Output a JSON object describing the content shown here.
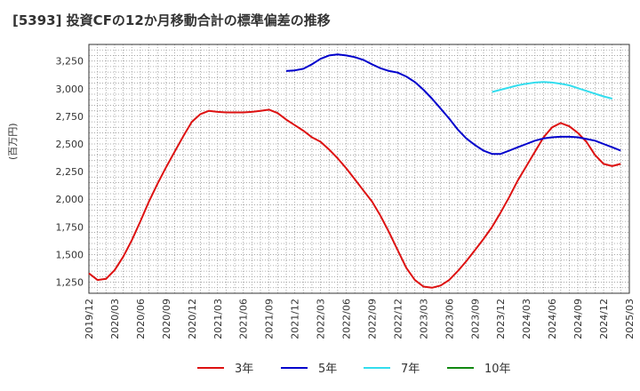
{
  "chart_data": {
    "type": "line",
    "title": "[5393]  投資CFの12か月移動合計の標準偏差の推移",
    "xlabel": "",
    "ylabel": "(百万円)",
    "ylim": [
      1150,
      3400
    ],
    "yticks": [
      1250,
      1500,
      1750,
      2000,
      2250,
      2500,
      2750,
      3000,
      3250
    ],
    "ytick_labels": [
      "1,250",
      "1,500",
      "1,750",
      "2,000",
      "2,250",
      "2,500",
      "2,750",
      "3,000",
      "3,250"
    ],
    "x_ticks": [
      "2019/12",
      "2020/03",
      "2020/06",
      "2020/09",
      "2020/12",
      "2021/03",
      "2021/06",
      "2021/09",
      "2021/12",
      "2022/03",
      "2022/06",
      "2022/09",
      "2022/12",
      "2023/03",
      "2023/06",
      "2023/09",
      "2023/12",
      "2024/03",
      "2024/06",
      "2024/09",
      "2024/12",
      "2025/03"
    ],
    "grid": true,
    "legend": "bottom",
    "series": [
      {
        "name": "3年",
        "color": "#dd1111",
        "start": "2019/12",
        "values": [
          1330,
          1270,
          1280,
          1360,
          1480,
          1630,
          1800,
          1980,
          2140,
          2290,
          2430,
          2570,
          2700,
          2770,
          2800,
          2790,
          2785,
          2785,
          2785,
          2790,
          2800,
          2810,
          2780,
          2720,
          2670,
          2620,
          2560,
          2520,
          2450,
          2370,
          2280,
          2180,
          2080,
          1980,
          1850,
          1700,
          1540,
          1380,
          1270,
          1210,
          1200,
          1220,
          1270,
          1350,
          1440,
          1540,
          1640,
          1750,
          1880,
          2020,
          2170,
          2300,
          2430,
          2560,
          2650,
          2690,
          2660,
          2600,
          2520,
          2400,
          2320,
          2300,
          2320
        ]
      },
      {
        "name": "5年",
        "color": "#0000cc",
        "start": "2021/11",
        "values": [
          3160,
          3165,
          3180,
          3220,
          3270,
          3300,
          3310,
          3300,
          3285,
          3260,
          3220,
          3185,
          3160,
          3145,
          3110,
          3060,
          2990,
          2910,
          2820,
          2730,
          2630,
          2550,
          2490,
          2440,
          2410,
          2410,
          2440,
          2470,
          2500,
          2530,
          2550,
          2560,
          2565,
          2565,
          2560,
          2545,
          2530,
          2500,
          2470,
          2440
        ]
      },
      {
        "name": "7年",
        "color": "#33ddee",
        "start": "2023/11",
        "values": [
          2970,
          2990,
          3010,
          3030,
          3045,
          3055,
          3060,
          3055,
          3045,
          3030,
          3005,
          2980,
          2955,
          2930,
          2910
        ]
      },
      {
        "name": "10年",
        "color": "#118811",
        "start": "2019/12",
        "values": []
      }
    ]
  }
}
